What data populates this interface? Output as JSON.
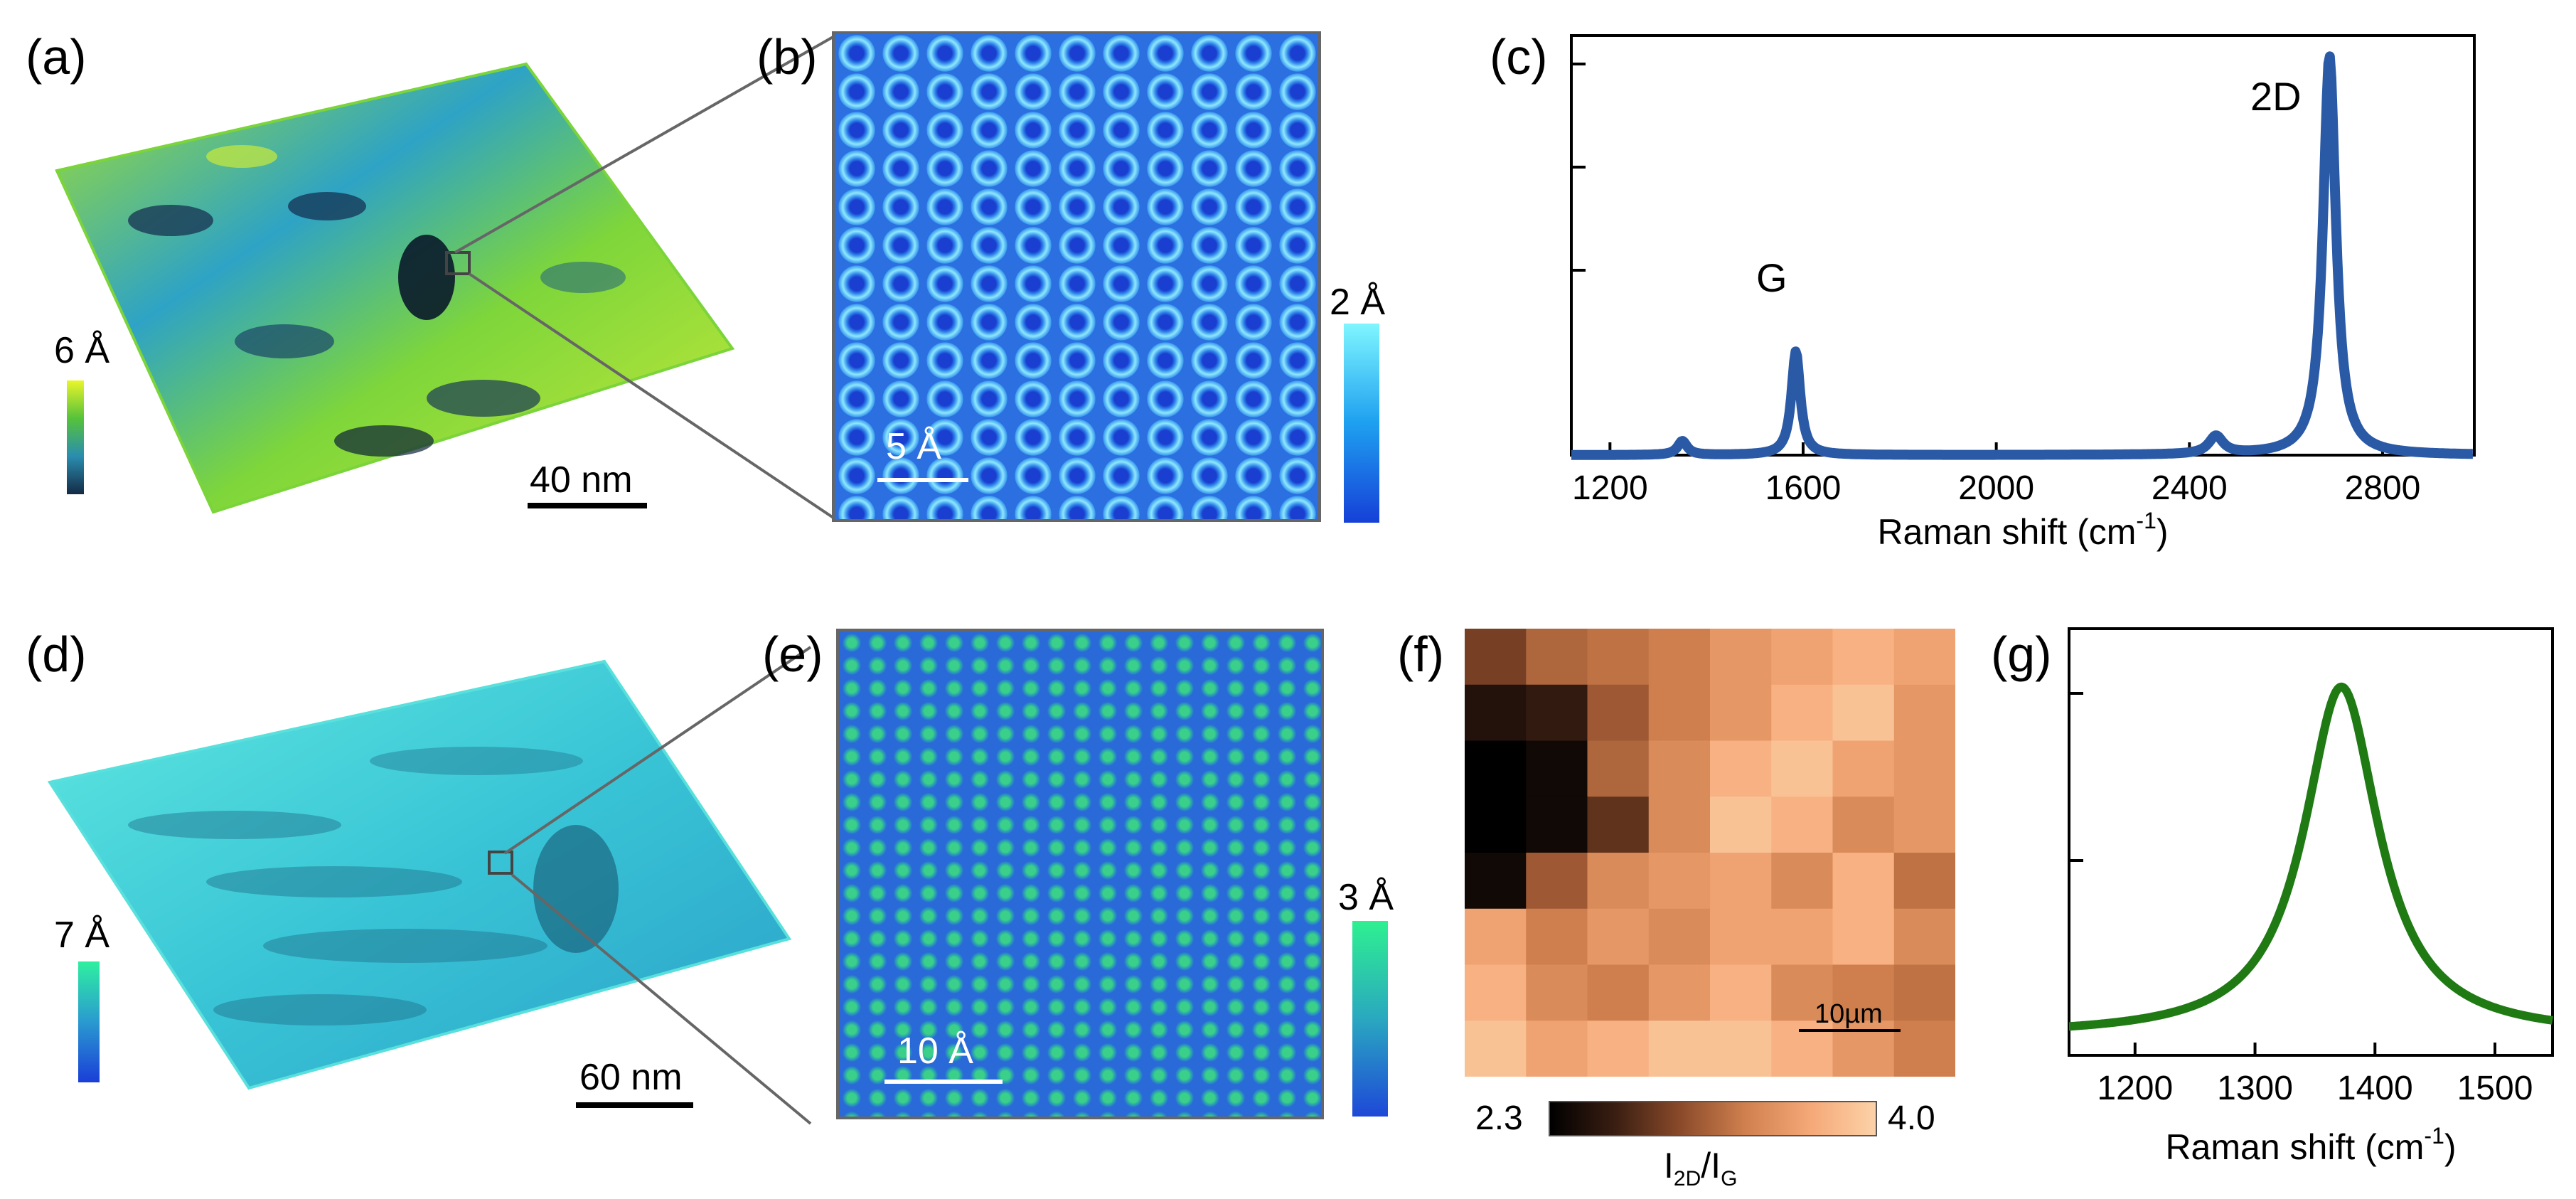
{
  "panels": {
    "a": {
      "label": "(a)",
      "colorbar_label": "6 Å",
      "scalebar": "40 nm"
    },
    "b": {
      "label": "(b)",
      "colorbar_label": "2 Å",
      "scalebar": "5 Å"
    },
    "c": {
      "label": "(c)",
      "peak_g": "G",
      "peak_2d": "2D"
    },
    "d": {
      "label": "(d)",
      "colorbar_label": "7 Å",
      "scalebar": "60 nm"
    },
    "e": {
      "label": "(e)",
      "colorbar_label": "3 Å",
      "scalebar": "10 Å"
    },
    "f": {
      "label": "(f)",
      "scalebar": "10µm",
      "cbar_min": "2.3",
      "cbar_max": "4.0",
      "cbar_title": "I",
      "cbar_sub1": "2D",
      "cbar_sep": "/I",
      "cbar_sub2": "G"
    },
    "g": {
      "label": "(g)"
    }
  },
  "colors": {
    "raman_c": "#2a5aa6",
    "raman_g": "#1f7a14",
    "afm_a": "#3aa0c8",
    "afm_d": "#3ec6d8"
  },
  "chart_data": [
    {
      "type": "line",
      "panel": "c",
      "xlabel": "Raman shift (cm",
      "xlabel_sup": "-1",
      "xlabel_end": ")",
      "xlim": [
        1120,
        2990
      ],
      "ylim": [
        0,
        1.05
      ],
      "xticks": [
        1200,
        1600,
        2000,
        2400,
        2800
      ],
      "xtick_labels": [
        "1200",
        "1600",
        "2000",
        "2400",
        "2800"
      ],
      "peaks": [
        {
          "center": 1350,
          "width": 12,
          "height": 0.035
        },
        {
          "center": 1585,
          "width": 11,
          "height": 0.26
        },
        {
          "center": 2455,
          "width": 18,
          "height": 0.045
        },
        {
          "center": 2690,
          "width": 16,
          "height": 1.0
        }
      ],
      "baseline": 0.0
    },
    {
      "type": "line",
      "panel": "g",
      "xlabel": "Raman shift (cm",
      "xlabel_sup": "-1",
      "xlabel_end": ")",
      "xlim": [
        1145,
        1548
      ],
      "ylim": [
        0,
        1.1
      ],
      "xticks": [
        1200,
        1300,
        1400,
        1500
      ],
      "xtick_labels": [
        "1200",
        "1300",
        "1400",
        "1500"
      ],
      "peaks": [
        {
          "center": 1372,
          "width": 38,
          "height": 0.9
        }
      ],
      "baseline": 0.05
    },
    {
      "type": "heatmap",
      "panel": "f",
      "value_range": [
        2.3,
        4.0
      ],
      "rows": 8,
      "cols": 8,
      "values": [
        [
          2.9,
          3.2,
          3.3,
          3.4,
          3.6,
          3.7,
          3.8,
          3.7
        ],
        [
          2.5,
          2.6,
          3.1,
          3.4,
          3.6,
          3.8,
          3.9,
          3.6
        ],
        [
          2.3,
          2.4,
          3.2,
          3.5,
          3.8,
          3.9,
          3.7,
          3.6
        ],
        [
          2.3,
          2.4,
          2.8,
          3.5,
          3.9,
          3.8,
          3.5,
          3.6
        ],
        [
          2.4,
          3.1,
          3.5,
          3.6,
          3.7,
          3.5,
          3.8,
          3.3
        ],
        [
          3.7,
          3.4,
          3.6,
          3.5,
          3.7,
          3.7,
          3.8,
          3.5
        ],
        [
          3.8,
          3.5,
          3.4,
          3.6,
          3.8,
          3.5,
          3.4,
          3.3
        ],
        [
          3.9,
          3.7,
          3.8,
          3.9,
          3.9,
          3.8,
          3.6,
          3.4
        ]
      ]
    }
  ]
}
